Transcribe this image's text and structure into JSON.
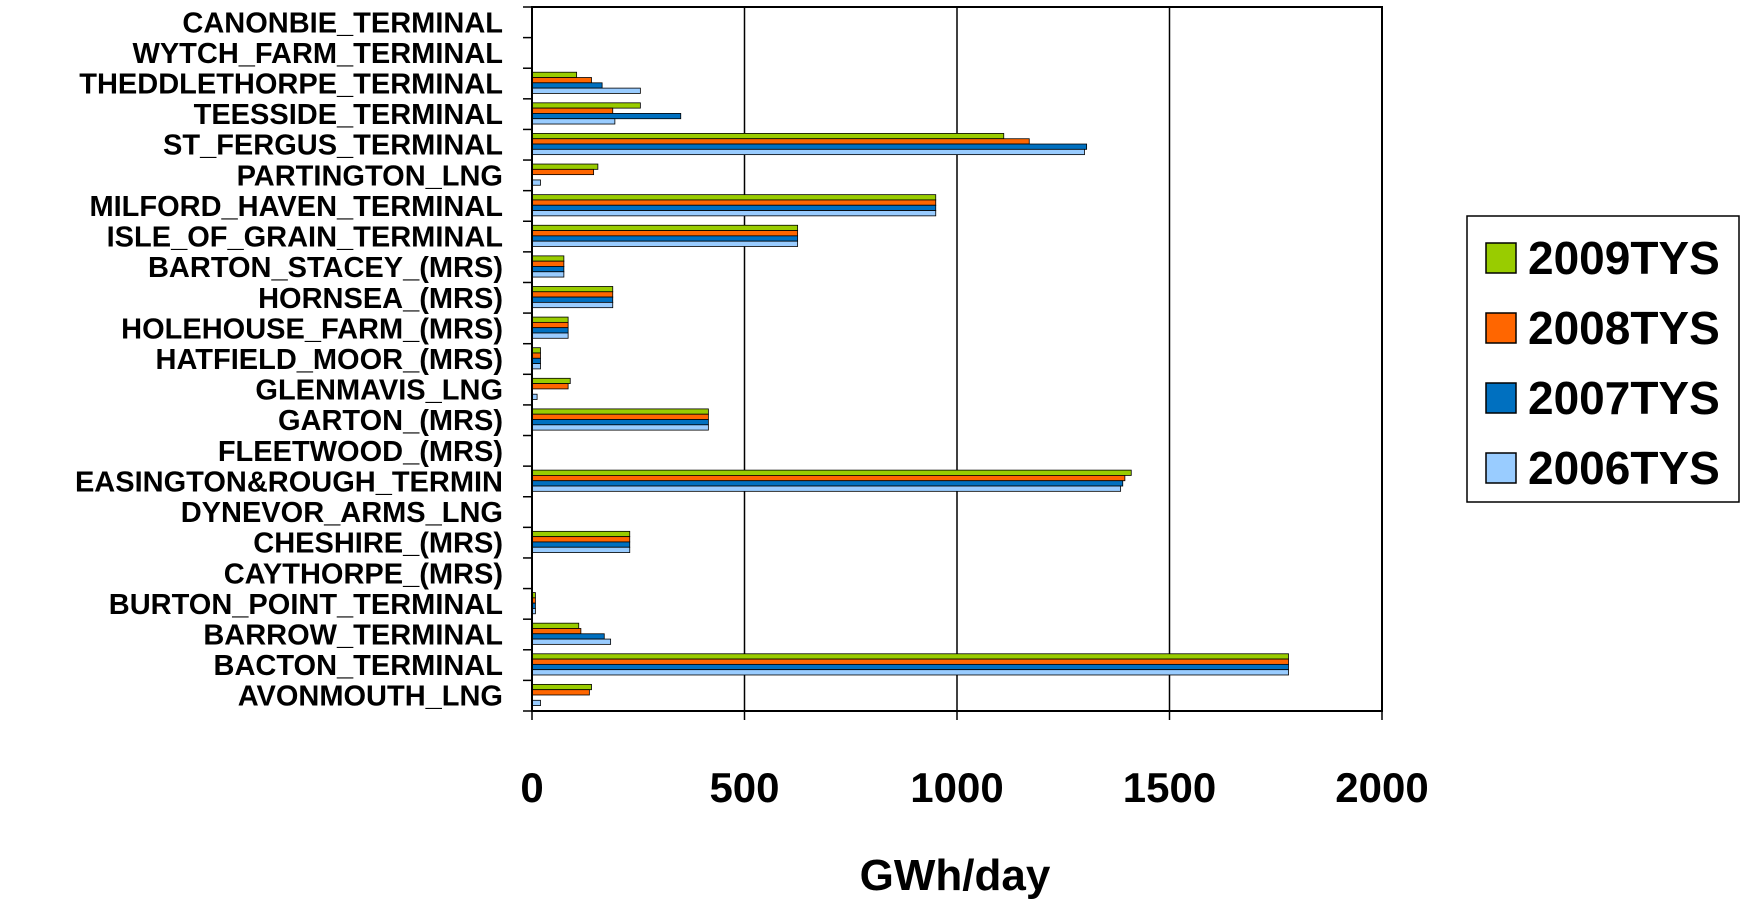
{
  "chart_data": {
    "type": "bar",
    "orientation": "horizontal",
    "xlabel": "GWh/day",
    "xlim": [
      0,
      2000
    ],
    "x_ticks": [
      "0",
      "500",
      "1000",
      "1500",
      "2000"
    ],
    "grid": "vertical",
    "legend_position": "right",
    "categories": [
      "CANONBIE_TERMINAL",
      "WYTCH_FARM_TERMINAL",
      "THEDDLETHORPE_TERMINAL",
      "TEESSIDE_TERMINAL",
      "ST_FERGUS_TERMINAL",
      "PARTINGTON_LNG",
      "MILFORD_HAVEN_TERMINAL",
      "ISLE_OF_GRAIN_TERMINAL",
      "BARTON_STACEY_(MRS)",
      "HORNSEA_(MRS)",
      "HOLEHOUSE_FARM_(MRS)",
      "HATFIELD_MOOR_(MRS)",
      "GLENMAVIS_LNG",
      "GARTON_(MRS)",
      "FLEETWOOD_(MRS)",
      "EASINGTON&ROUGH_TERMIN",
      "DYNEVOR_ARMS_LNG",
      "CHESHIRE_(MRS)",
      "CAYTHORPE_(MRS)",
      "BURTON_POINT_TERMINAL",
      "BARROW_TERMINAL",
      "BACTON_TERMINAL",
      "AVONMOUTH_LNG"
    ],
    "series": [
      {
        "name": "2009TYS",
        "color": "#99cc00",
        "values": [
          0,
          0,
          105,
          255,
          1110,
          155,
          950,
          625,
          75,
          190,
          85,
          20,
          90,
          415,
          0,
          1410,
          0,
          230,
          0,
          8,
          110,
          1780,
          140
        ]
      },
      {
        "name": "2008TYS",
        "color": "#ff6600",
        "values": [
          0,
          0,
          140,
          190,
          1170,
          145,
          950,
          625,
          75,
          190,
          85,
          20,
          85,
          415,
          0,
          1395,
          0,
          230,
          0,
          8,
          115,
          1780,
          135
        ]
      },
      {
        "name": "2007TYS",
        "color": "#0070c0",
        "values": [
          0,
          0,
          165,
          350,
          1305,
          0,
          950,
          625,
          75,
          190,
          85,
          20,
          0,
          415,
          0,
          1390,
          0,
          230,
          0,
          8,
          170,
          1780,
          0
        ]
      },
      {
        "name": "2006TYS",
        "color": "#99ccff",
        "values": [
          0,
          0,
          255,
          195,
          1300,
          20,
          950,
          625,
          75,
          190,
          85,
          20,
          12,
          415,
          0,
          1385,
          0,
          230,
          0,
          8,
          185,
          1780,
          20
        ]
      }
    ]
  }
}
